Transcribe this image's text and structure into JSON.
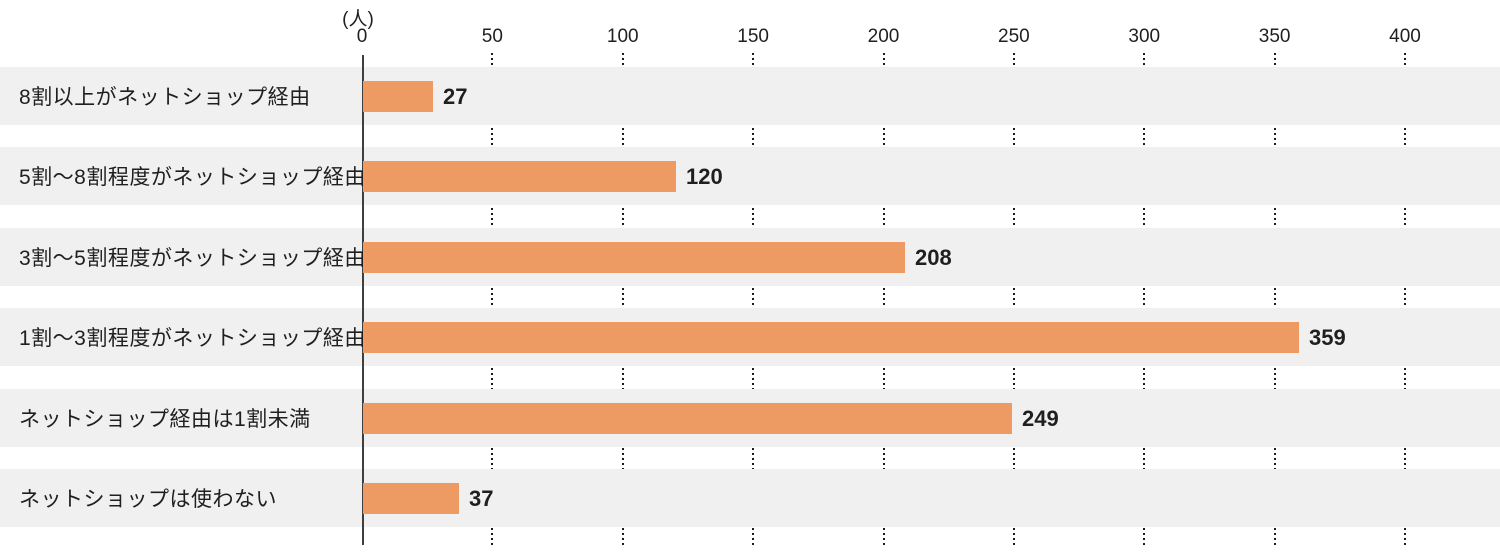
{
  "chart_data": {
    "type": "bar",
    "orientation": "horizontal",
    "title": "",
    "unit_label": "(人)",
    "categories": [
      "8割以上がネットショップ経由",
      "5割〜8割程度がネットショップ経由",
      "3割〜5割程度がネットショップ経由",
      "1割〜3割程度がネットショップ経由",
      "ネットショップ経由は1割未満",
      "ネットショップは使わない"
    ],
    "values": [
      27,
      120,
      208,
      359,
      249,
      37
    ],
    "value_labels": [
      "27",
      "120",
      "208",
      "359",
      "249",
      "37"
    ],
    "xlim": [
      0,
      400
    ],
    "x_ticks": [
      0,
      50,
      100,
      150,
      200,
      250,
      300,
      350,
      400
    ],
    "grid": "dotted-vertical-in-row-gaps",
    "legend": "none",
    "colors": {
      "bar": "#ED9A63",
      "row_stripe": "#F0F0F0",
      "axis_line": "#3F3F3F",
      "gridline": "#1C1C1C",
      "text": "#1F1F1F",
      "background": "#FFFFFF"
    }
  }
}
